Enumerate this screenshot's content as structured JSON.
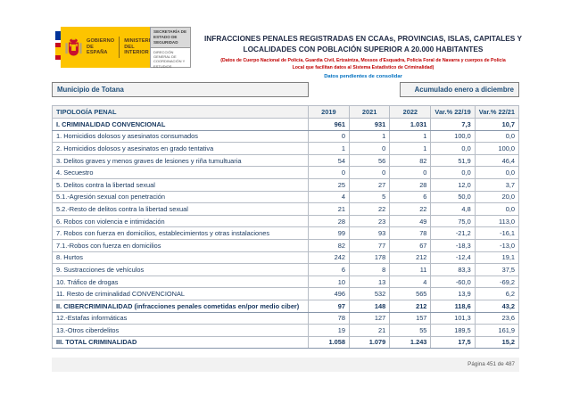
{
  "logo": {
    "government": "GOBIERNO DE ESPAÑA",
    "ministry": "MINISTERIO DEL INTERIOR",
    "secretary": "SECRETARÍA DE ESTADO DE SEGURIDAD",
    "direction": "DIRECCIÓN GENERAL DE COORDINACIÓN Y ESTUDIOS"
  },
  "header": {
    "title": "INFRACCIONES PENALES REGISTRADAS EN CCAAs, PROVINCIAS, ISLAS, CAPITALES Y LOCALIDADES CON POBLACIÓN SUPERIOR A 20.000 HABITANTES",
    "source_note": "(Datos de Cuerpo Nacional de Policía, Guardia Civil, Ertzaintza, Mossos d'Esquadra, Policía Foral de Navarra y cuerpos de Policía Local que facilitan datos al Sistema Estadístico de Criminalidad)",
    "status_note": "Datos pendientes de consolidar"
  },
  "filters": {
    "municipality": "Municipio de Totana",
    "period": "Acumulado enero a diciembre"
  },
  "table": {
    "columns": [
      "TIPOLOGÍA PENAL",
      "2019",
      "2021",
      "2022",
      "Var.% 22/19",
      "Var.% 22/21"
    ],
    "rows": [
      {
        "label": "I. CRIMINALIDAD CONVENCIONAL",
        "values": [
          "961",
          "931",
          "1.031",
          "7,3",
          "10,7"
        ],
        "bold": true
      },
      {
        "label": "1. Homicidios dolosos y asesinatos consumados",
        "values": [
          "0",
          "1",
          "1",
          "100,0",
          "0,0"
        ],
        "bold": false
      },
      {
        "label": "2. Homicidios dolosos y asesinatos en grado tentativa",
        "values": [
          "1",
          "0",
          "1",
          "0,0",
          "100,0"
        ],
        "bold": false
      },
      {
        "label": "3. Delitos graves y menos graves de lesiones y riña tumultuaria",
        "values": [
          "54",
          "56",
          "82",
          "51,9",
          "46,4"
        ],
        "bold": false
      },
      {
        "label": "4. Secuestro",
        "values": [
          "0",
          "0",
          "0",
          "0,0",
          "0,0"
        ],
        "bold": false
      },
      {
        "label": "5. Delitos contra la libertad sexual",
        "values": [
          "25",
          "27",
          "28",
          "12,0",
          "3,7"
        ],
        "bold": false
      },
      {
        "label": "5.1.-Agresión sexual con penetración",
        "values": [
          "4",
          "5",
          "6",
          "50,0",
          "20,0"
        ],
        "bold": false
      },
      {
        "label": "5.2.-Resto de delitos contra la libertad sexual",
        "values": [
          "21",
          "22",
          "22",
          "4,8",
          "0,0"
        ],
        "bold": false
      },
      {
        "label": "6. Robos con violencia e intimidación",
        "values": [
          "28",
          "23",
          "49",
          "75,0",
          "113,0"
        ],
        "bold": false
      },
      {
        "label": "7. Robos con fuerza en domicilios, establecimientos y otras instalaciones",
        "values": [
          "99",
          "93",
          "78",
          "-21,2",
          "-16,1"
        ],
        "bold": false
      },
      {
        "label": "7.1.-Robos con fuerza en domicilios",
        "values": [
          "82",
          "77",
          "67",
          "-18,3",
          "-13,0"
        ],
        "bold": false
      },
      {
        "label": "8. Hurtos",
        "values": [
          "242",
          "178",
          "212",
          "-12,4",
          "19,1"
        ],
        "bold": false
      },
      {
        "label": "9. Sustracciones de vehículos",
        "values": [
          "6",
          "8",
          "11",
          "83,3",
          "37,5"
        ],
        "bold": false
      },
      {
        "label": "10. Tráfico de drogas",
        "values": [
          "10",
          "13",
          "4",
          "-60,0",
          "-69,2"
        ],
        "bold": false
      },
      {
        "label": "11. Resto de criminalidad CONVENCIONAL",
        "values": [
          "496",
          "532",
          "565",
          "13,9",
          "6,2"
        ],
        "bold": false
      },
      {
        "label": "II. CIBERCRIMINALIDAD (infracciones penales cometidas en/por medio ciber)",
        "values": [
          "97",
          "148",
          "212",
          "118,6",
          "43,2"
        ],
        "bold": true
      },
      {
        "label": "12.-Estafas informáticas",
        "values": [
          "78",
          "127",
          "157",
          "101,3",
          "23,6"
        ],
        "bold": false
      },
      {
        "label": "13.-Otros ciberdelitos",
        "values": [
          "19",
          "21",
          "55",
          "189,5",
          "161,9"
        ],
        "bold": false
      },
      {
        "label": "III. TOTAL CRIMINALIDAD",
        "values": [
          "1.058",
          "1.079",
          "1.243",
          "17,5",
          "15,2"
        ],
        "bold": true
      }
    ]
  },
  "footer": {
    "page_label": "Página 451 de 487"
  },
  "colors": {
    "table_text": "#17375e",
    "header_bg": "#f2f2f2",
    "title_text": "#1f2a44",
    "source_red": "#c00000",
    "status_blue": "#0070c0",
    "logo_yellow": "#fdc400"
  }
}
